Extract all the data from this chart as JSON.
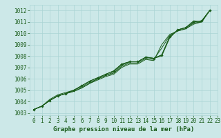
{
  "title": "Graphe pression niveau de la mer (hPa)",
  "bg_color": "#cce8e8",
  "grid_color": "#aad4d4",
  "line_color": "#1a5c1a",
  "xlim": [
    -0.5,
    23
  ],
  "ylim": [
    1002.8,
    1012.5
  ],
  "yticks": [
    1003,
    1004,
    1005,
    1006,
    1007,
    1008,
    1009,
    1010,
    1011,
    1012
  ],
  "xticks": [
    0,
    1,
    2,
    3,
    4,
    5,
    6,
    7,
    8,
    9,
    10,
    11,
    12,
    13,
    14,
    15,
    16,
    17,
    18,
    19,
    20,
    21,
    22,
    23
  ],
  "series": [
    [
      1003.3,
      1003.6,
      1004.1,
      1004.5,
      1004.7,
      1005.0,
      1005.4,
      1005.8,
      1006.1,
      1006.4,
      1006.7,
      1007.3,
      1007.5,
      1007.5,
      1007.9,
      1007.8,
      1008.1,
      1009.7,
      1010.3,
      1010.5,
      1011.0,
      1011.1,
      1012.0
    ],
    [
      1003.3,
      1003.6,
      1004.1,
      1004.5,
      1004.7,
      1004.9,
      1005.2,
      1005.6,
      1006.0,
      1006.3,
      1006.5,
      1007.1,
      1007.4,
      1007.4,
      1007.8,
      1007.7,
      1008.7,
      1009.8,
      1010.2,
      1010.4,
      1010.9,
      1011.0,
      1012.0
    ],
    [
      1003.3,
      1003.6,
      1004.1,
      1004.5,
      1004.7,
      1004.9,
      1005.2,
      1005.6,
      1005.9,
      1006.2,
      1006.4,
      1007.0,
      1007.3,
      1007.3,
      1007.7,
      1007.6,
      1009.0,
      1009.9,
      1010.2,
      1010.4,
      1010.8,
      1011.0,
      1012.0
    ],
    [
      1003.3,
      1003.6,
      1004.2,
      1004.6,
      1004.8,
      1005.0,
      1005.3,
      1005.7,
      1006.0,
      1006.3,
      1006.6,
      1007.2,
      1007.5,
      1007.5,
      1007.9,
      1007.8,
      1008.0,
      1009.6,
      1010.3,
      1010.5,
      1011.1,
      1011.0,
      1012.0
    ]
  ],
  "marker_x": [
    0,
    1,
    2,
    3,
    4,
    5,
    6,
    7,
    8,
    9,
    10,
    11,
    12,
    13,
    14,
    15,
    16,
    17,
    18,
    19,
    20,
    21,
    22
  ],
  "title_fontsize": 6.5,
  "tick_fontsize": 5.5
}
